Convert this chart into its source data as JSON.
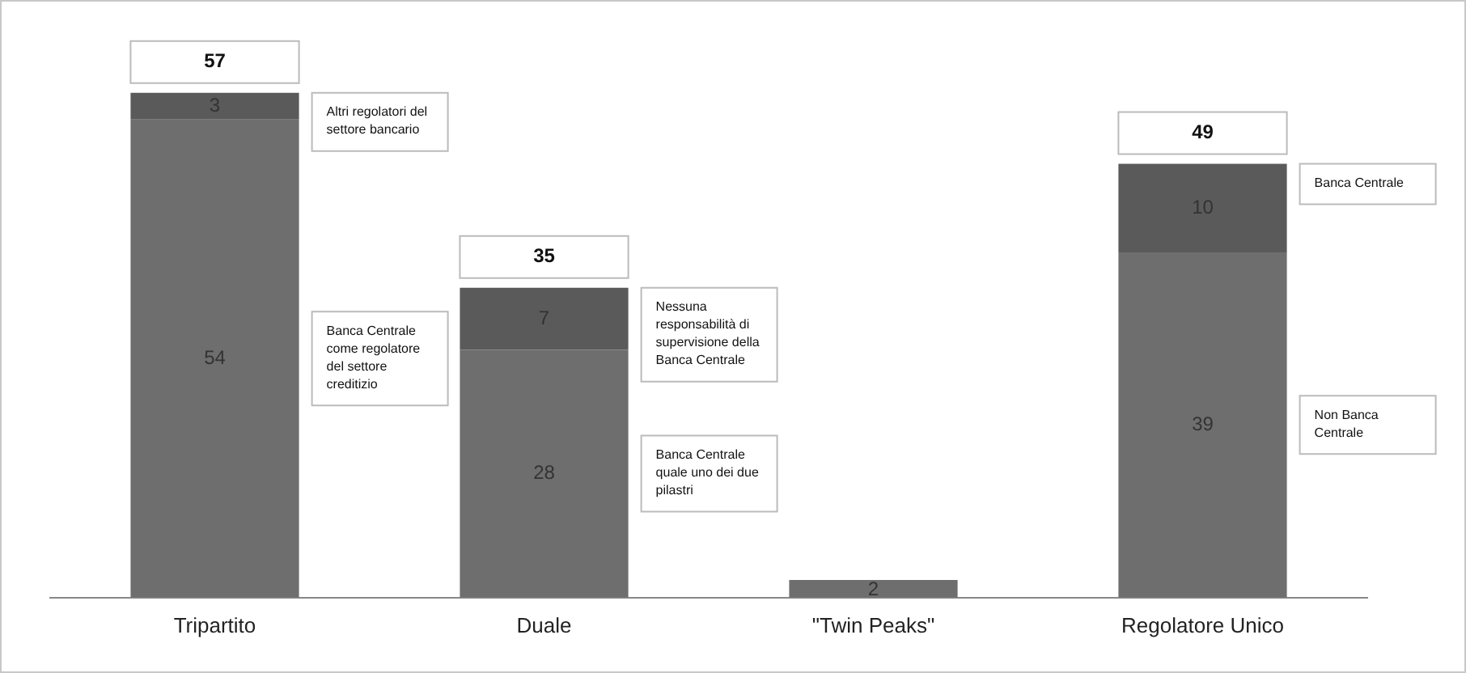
{
  "chart_data": {
    "type": "bar",
    "stacked": true,
    "tick_labels": "x",
    "grid": false,
    "legend": false,
    "data_labels": true,
    "categories": [
      "Tripartito",
      "Duale",
      "\"Twin Peaks\"",
      "Regolatore Unico"
    ],
    "series": [
      {
        "color": "#6e6e6e",
        "values": [
          54,
          28,
          2,
          39
        ]
      },
      {
        "color": "#5a5a5a",
        "values": [
          3,
          7,
          null,
          10
        ]
      }
    ],
    "totals": [
      "57",
      "35",
      null,
      "49"
    ],
    "annotations": [
      "Altri regolatori del settore bancario",
      "Banca Centrale come regolatore del settore creditizio",
      "Nessuna responsabilità di supervisione della Banca Centrale",
      "Banca Centrale quale uno dei due pilastri",
      "Banca Centrale",
      "Non Banca Centrale"
    ]
  }
}
